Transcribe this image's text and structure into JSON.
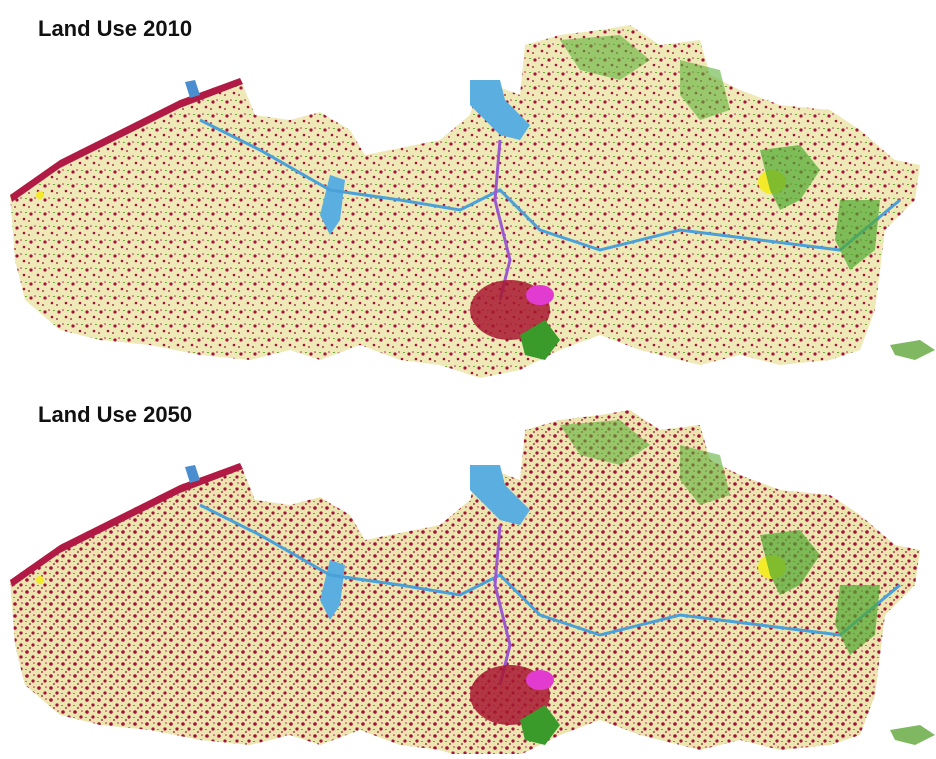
{
  "panels": [
    {
      "title": "Land Use 2010"
    },
    {
      "title": "Land Use 2050"
    }
  ]
}
